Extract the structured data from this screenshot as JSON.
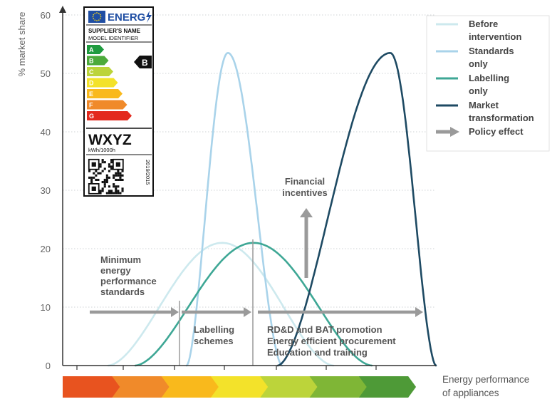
{
  "chart_data": {
    "type": "line",
    "ylabel": "% market share",
    "xlabel_lines": [
      "Energy performance",
      "of appliances"
    ],
    "ylim": [
      0,
      62
    ],
    "y_ticks": [
      "0",
      "10",
      "20",
      "30",
      "40",
      "50",
      "60"
    ],
    "series": [
      {
        "name_lines": [
          "Before",
          "intervention"
        ],
        "color": "#cde9ee",
        "peak_y": 21
      },
      {
        "name_lines": [
          "Standards",
          "only"
        ],
        "color": "#a9d3ea",
        "peak_y": 53.5
      },
      {
        "name_lines": [
          "Labelling",
          "only"
        ],
        "color": "#3ea795",
        "peak_y": 21
      },
      {
        "name_lines": [
          "Market",
          "transformation"
        ],
        "color": "#1e4a63",
        "peak_y": 53.5
      }
    ],
    "policy_effect_label": "Policy effect",
    "annotations": {
      "mepsLines": [
        "Minimum",
        "energy",
        "performance",
        "standards"
      ],
      "labellingLines": [
        "Labelling",
        "schemes"
      ],
      "financialLines": [
        "Financial",
        "incentives"
      ],
      "rdLines": [
        "RD&D and BAT promotion",
        "Energy efficient procurement",
        "Education and training"
      ]
    },
    "energy_scale_colors": [
      "#e8531f",
      "#f08a2a",
      "#f9b91c",
      "#f3e22a",
      "#bcd43a",
      "#7fb636",
      "#4e9a37"
    ]
  },
  "energy_label": {
    "brand": "ENERG",
    "supplier": "SUPPLIER'S NAME",
    "model": "MODEL IDENTIFIER",
    "classes": [
      "A",
      "B",
      "C",
      "D",
      "E",
      "F",
      "G"
    ],
    "class_colors": [
      "#1f9b3f",
      "#4caa3b",
      "#bcd43a",
      "#f3e22a",
      "#f9b91c",
      "#f08a2a",
      "#e32a1e"
    ],
    "rating": "B",
    "consumption_value": "WXYZ",
    "consumption_unit": "kWh/1000h",
    "regulation": "2019/2015"
  }
}
